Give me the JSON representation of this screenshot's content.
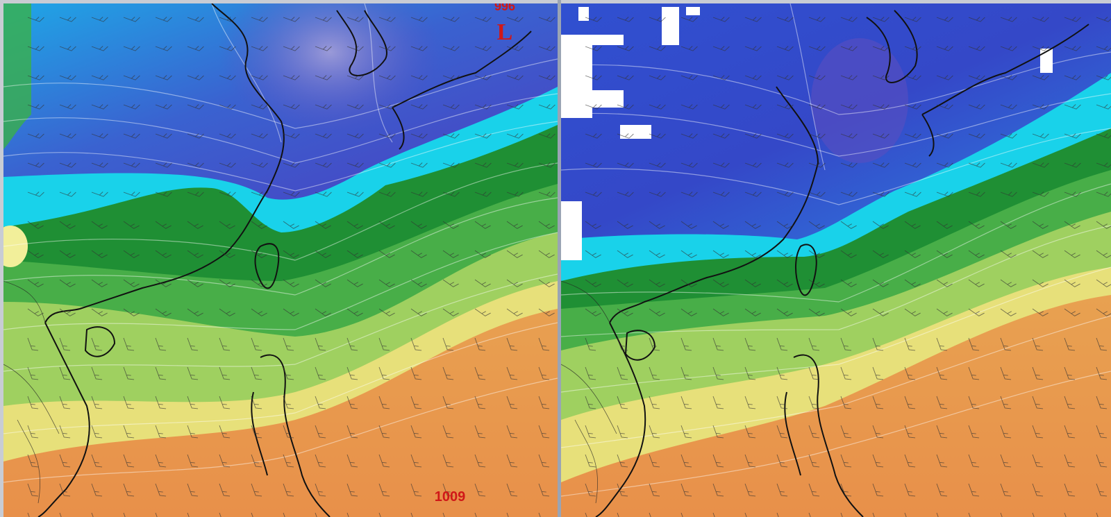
{
  "left_map": {
    "pressure_labels": [
      "996",
      "1009"
    ],
    "low_marker": "L"
  }
}
